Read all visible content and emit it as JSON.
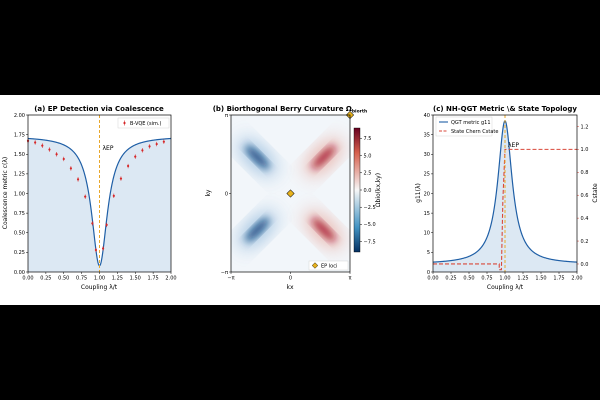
{
  "colors": {
    "curve": "#1f5fa6",
    "fill": "#dce8f3",
    "points": "#d62728",
    "ep_line": "#e8a72b",
    "diamond": "#e8b21c",
    "chern": "#d9473a",
    "figure_bg": "#000000",
    "panel_bg": "#ffffff"
  },
  "chart_data": [
    {
      "type": "line",
      "title": "(a) EP Detection via Coalescence",
      "xlabel": "Coupling λ/t",
      "ylabel": "Coalescence metric c(λ)",
      "xlim": [
        0.0,
        2.0
      ],
      "ylim": [
        0.0,
        2.0
      ],
      "xticks": [
        "0.00",
        "0.25",
        "0.50",
        "0.75",
        "1.00",
        "1.25",
        "1.50",
        "1.75",
        "2.00"
      ],
      "yticks": [
        "0.00",
        "0.25",
        "0.50",
        "0.75",
        "1.00",
        "1.25",
        "1.50",
        "1.75",
        "2.00"
      ],
      "ep_label": "λEP",
      "ep_x": 1.0,
      "legend": {
        "position": "top-right",
        "entries": [
          "B-VQE (sim.)"
        ]
      },
      "series": [
        {
          "name": "B-VQE (sim.)",
          "x": [
            0.0,
            0.1,
            0.2,
            0.3,
            0.4,
            0.5,
            0.6,
            0.7,
            0.8,
            0.9,
            0.95,
            1.05,
            1.1,
            1.2,
            1.3,
            1.4,
            1.5,
            1.6,
            1.7,
            1.8,
            1.9
          ],
          "y": [
            1.67,
            1.65,
            1.61,
            1.56,
            1.5,
            1.44,
            1.32,
            1.18,
            0.96,
            0.62,
            0.28,
            0.3,
            0.6,
            0.97,
            1.19,
            1.35,
            1.47,
            1.55,
            1.6,
            1.63,
            1.66
          ]
        }
      ]
    },
    {
      "type": "heatmap",
      "title": "(b) Biorthogonal Berry Curvature Ω",
      "title_sub": "biorth",
      "xlabel": "kx",
      "ylabel": "ky",
      "xlim": [
        -3.1416,
        3.1416
      ],
      "ylim": [
        -3.1416,
        3.1416
      ],
      "xticks": [
        "−π",
        "0",
        "π"
      ],
      "yticks": [
        "−π",
        "0",
        "π"
      ],
      "colorbar_label": "Ωbio(kx,ky)",
      "colorbar_ticks": [
        "7.5",
        "5.0",
        "2.5",
        "0.0",
        "−2.5",
        "−5.0",
        "−7.5"
      ],
      "colorbar_range": [
        -9,
        9
      ],
      "legend": {
        "position": "bottom-right",
        "entries": [
          "EP loci"
        ]
      },
      "lobes": [
        {
          "kx": -1.75,
          "ky": 1.45,
          "value": -9,
          "angle": 45
        },
        {
          "kx": -1.75,
          "ky": -1.45,
          "value": -9,
          "angle": -45
        },
        {
          "kx": 1.75,
          "ky": 1.45,
          "value": 9,
          "angle": -45
        },
        {
          "kx": 1.75,
          "ky": -1.45,
          "value": 9,
          "angle": 45
        }
      ],
      "ep_loci": [
        {
          "kx": 0.0,
          "ky": 0.0
        },
        {
          "kx": 3.1416,
          "ky": 3.1416
        }
      ]
    },
    {
      "type": "line",
      "title": "(c) NH-QGT Metric \\& State Topology",
      "xlabel": "Coupling λ/t",
      "ylabel": "g11(λ)",
      "ylabel_right": "Cstate",
      "xlim": [
        0.0,
        2.0
      ],
      "ylim": [
        0,
        40
      ],
      "ylim_right": [
        -0.07,
        1.3
      ],
      "xticks": [
        "0.00",
        "0.25",
        "0.50",
        "0.75",
        "1.00",
        "1.25",
        "1.50",
        "1.75",
        "2.00"
      ],
      "yticks": [
        "0",
        "5",
        "10",
        "15",
        "20",
        "25",
        "30",
        "35",
        "40"
      ],
      "yticks_right": [
        "0.0",
        "0.2",
        "0.4",
        "0.6",
        "0.8",
        "1.0",
        "1.2"
      ],
      "ep_label": "λEP",
      "ep_x": 1.0,
      "legend": {
        "position": "top-left",
        "entries": [
          "QGT metric g11",
          "State Chern Cstate"
        ]
      },
      "series": [
        {
          "name": "QGT metric g11",
          "peak_x": 1.0,
          "peak_y": 38.5,
          "baseline": 2.0,
          "width": 0.12
        },
        {
          "name": "State Chern Cstate",
          "x": [
            0.0,
            0.92,
            0.92,
            0.95,
            0.97,
            1.0,
            1.03,
            1.03,
            2.0
          ],
          "y": [
            0.0,
            0.0,
            -0.05,
            -0.05,
            0.55,
            1.0,
            1.0,
            1.0,
            1.0
          ]
        }
      ]
    }
  ]
}
